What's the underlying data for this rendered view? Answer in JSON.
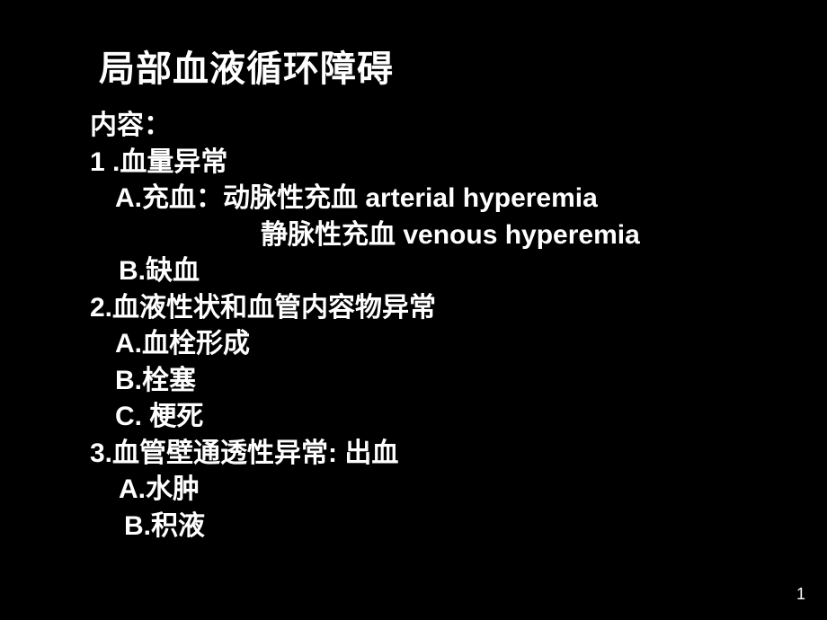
{
  "slide": {
    "background_color": "#000000",
    "text_color": "#ffffff",
    "title_fontsize": 40,
    "body_fontsize": 30,
    "font_weight": "bold",
    "title": "局部血液循环障碍",
    "lines": {
      "contents_label": "内容：",
      "s1": "1 .血量异常",
      "s1a_prefix": "A.充血：动脉性充血 ",
      "s1a_en": "arterial hyperemia",
      "s1a2_cn": "静脉性充血 ",
      "s1a2_en": "venous hyperemia",
      "s1b": "B.缺血",
      "s2": "2.血液性状和血管内容物异常",
      "s2a": "A.血栓形成",
      "s2b": "B.栓塞",
      "s2c": "C. 梗死",
      "s3": "3.血管壁通透性异常:   出血",
      "s3a": "A.水肿",
      "s3b": "B.积液"
    },
    "page_number": "1"
  }
}
